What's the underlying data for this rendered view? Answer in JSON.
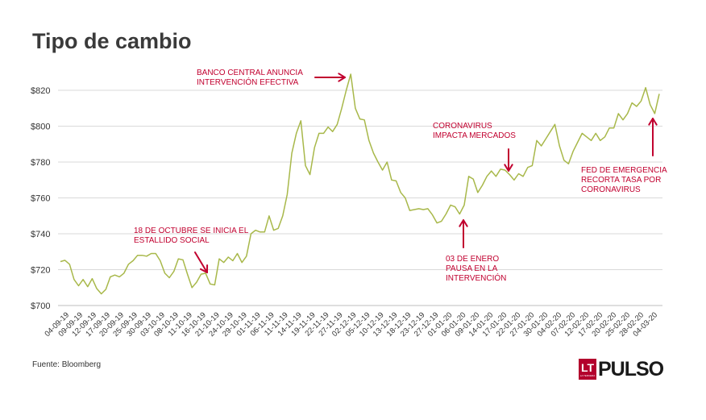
{
  "title": "Tipo de cambio",
  "source": "Fuente: Bloomberg",
  "logo": {
    "badge": "LT",
    "badge_sub": "LA TERCERA",
    "name": "PULSO"
  },
  "colors": {
    "line": "#a8b84a",
    "annotation": "#c1002f",
    "grid": "#d9d9d9",
    "axis_text": "#333333"
  },
  "annotations": [
    {
      "text": "18 DE OCTUBRE SE INICIA EL\nESTALLIDO SOCIAL"
    },
    {
      "text": "BANCO CENTRAL ANUNCIA\nINTERVENCIÓN EFECTIVA"
    },
    {
      "text": "03 DE ENERO\nPAUSA EN LA\nINTERVENCIÓN"
    },
    {
      "text": "CORONAVIRUS\nIMPACTA MERCADOS"
    },
    {
      "text": "FED DE EMERGENCIA\nRECORTA TASA POR\nCORONAVIRUS"
    }
  ],
  "chart_data": {
    "type": "line",
    "title": "Tipo de cambio",
    "ylim": [
      700,
      830
    ],
    "yticks": [
      700,
      720,
      740,
      760,
      780,
      800,
      820
    ],
    "ytick_labels": [
      "$700",
      "$720",
      "$740",
      "$760",
      "$780",
      "$800",
      "$820"
    ],
    "grid": true,
    "x_tick_labels": [
      "04-09-19",
      "09-09-19",
      "12-09-19",
      "17-09-19",
      "20-09-19",
      "25-09-19",
      "30-09-19",
      "03-10-19",
      "08-10-19",
      "11-10-19",
      "16-10-19",
      "21-10-19",
      "24-10-19",
      "29-10-19",
      "01-11-19",
      "06-11-19",
      "11-11-19",
      "14-11-19",
      "19-11-19",
      "22-11-19",
      "27-11-19",
      "02-12-19",
      "05-12-19",
      "10-12-19",
      "13-12-19",
      "18-12-19",
      "23-12-19",
      "27-12-19",
      "01-01-20",
      "06-01-20",
      "09-01-20",
      "14-01-20",
      "17-01-20",
      "22-01-20",
      "27-01-20",
      "30-01-20",
      "04-02-20",
      "07-02-20",
      "12-02-20",
      "17-02-20",
      "20-02-20",
      "25-02-20",
      "28-02-20",
      "04-03-20"
    ],
    "values": [
      724.5,
      725.2,
      723,
      714.5,
      711,
      714.5,
      710.5,
      715,
      709.5,
      706.5,
      709,
      716,
      717,
      716,
      718,
      723,
      725,
      728,
      728,
      727.5,
      729,
      729,
      725,
      718,
      715.5,
      719,
      726,
      725.5,
      717.5,
      710,
      713,
      717.5,
      718,
      712,
      711.5,
      726,
      724,
      727,
      725,
      729,
      724,
      727.5,
      740,
      742,
      741,
      741,
      750,
      742,
      743,
      750,
      762,
      785,
      796,
      803,
      778,
      773,
      788,
      796,
      796,
      799.5,
      797,
      801,
      810,
      820,
      829,
      810,
      804,
      803.5,
      792,
      785,
      780,
      775.5,
      780,
      770,
      769.5,
      763,
      760,
      753,
      753.5,
      754,
      753.5,
      754,
      750.5,
      746,
      747,
      751,
      756,
      755,
      751,
      756,
      772,
      770.5,
      763,
      767,
      772,
      775,
      772,
      776,
      775.5,
      773,
      770,
      773.5,
      772,
      777,
      778,
      792,
      789,
      793,
      797,
      801,
      789,
      781,
      779,
      786,
      791,
      796,
      794,
      792,
      796,
      792,
      794,
      799,
      799,
      807,
      803.5,
      807,
      813,
      811,
      814,
      821.5,
      812,
      807,
      818
    ]
  }
}
